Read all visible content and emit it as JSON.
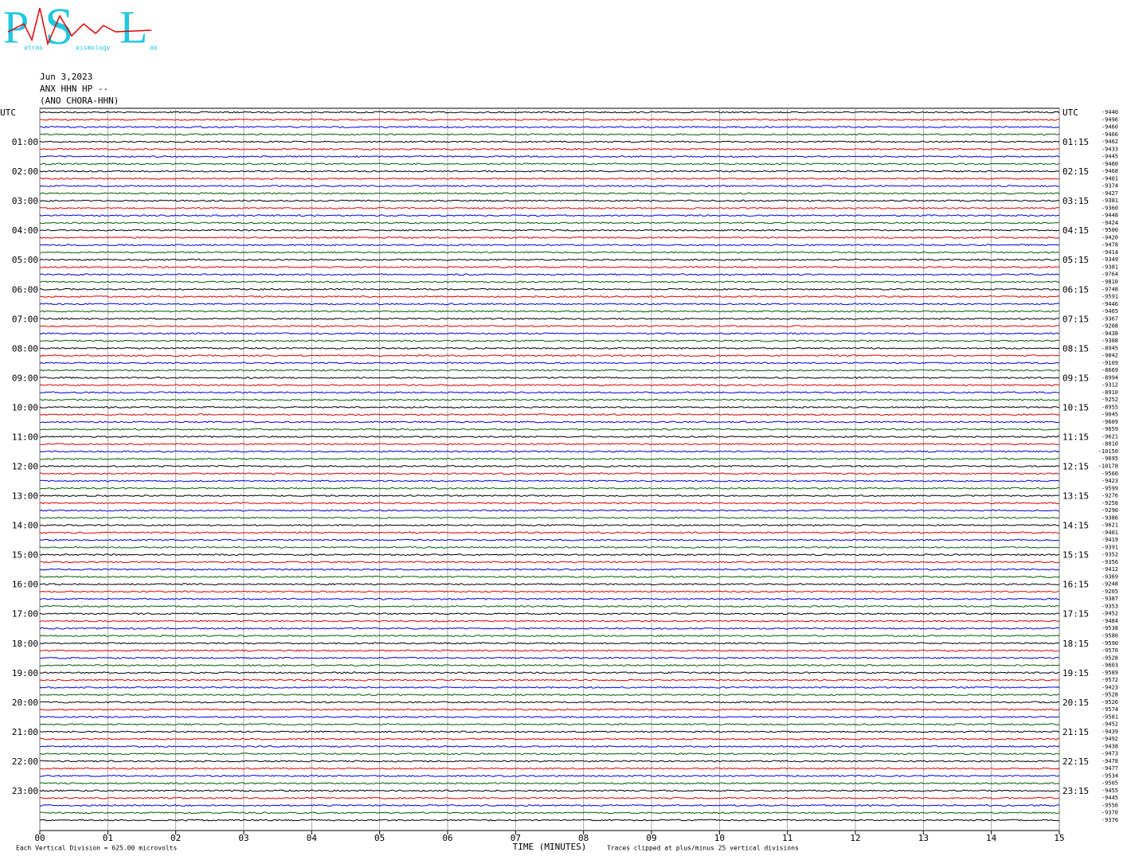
{
  "logo": {
    "letters": [
      "P",
      "S",
      "L"
    ],
    "words": [
      "atras",
      "eismology",
      "ab"
    ]
  },
  "header": [
    "Jun 3,2023",
    "ANX HHN HP --",
    "(ANO CHORA-HHN)"
  ],
  "left_labels": [
    "UTC",
    "01:00",
    "02:00",
    "03:00",
    "04:00",
    "05:00",
    "06:00",
    "07:00",
    "08:00",
    "09:00",
    "10:00",
    "11:00",
    "12:00",
    "13:00",
    "14:00",
    "15:00",
    "16:00",
    "17:00",
    "18:00",
    "19:00",
    "20:00",
    "21:00",
    "22:00",
    "23:00"
  ],
  "right_labels": [
    "UTC",
    "01:15",
    "02:15",
    "03:15",
    "04:15",
    "05:15",
    "06:15",
    "07:15",
    "08:15",
    "09:15",
    "10:15",
    "11:15",
    "12:15",
    "13:15",
    "14:15",
    "15:15",
    "16:15",
    "17:15",
    "18:15",
    "19:15",
    "20:15",
    "21:15",
    "22:15",
    "23:15"
  ],
  "trace_offsets": [
    "-9440",
    "-9496",
    "-9460",
    "-9466",
    "-9462",
    "-9433",
    "-9445",
    "-9460",
    "-9468",
    "-9401",
    "-9374",
    "-9427",
    "-9381",
    "-9360",
    "-9448",
    "-9424",
    "-9500",
    "-9420",
    "-9478",
    "-9414",
    "-9349",
    "-9381",
    "-9764",
    "-9810",
    "-9748",
    "-9591",
    "-9446",
    "-9465",
    "-9367",
    "-9208",
    "-9438",
    "-9308",
    "-8945",
    "-9042",
    "-9109",
    "-8669",
    "-8994",
    "-9312",
    "-8910",
    "-9252",
    "-8955",
    "-9045",
    "-9609",
    "-9659",
    "-9621",
    "-8010",
    "-10150",
    "-9695",
    "-10178",
    "-9566",
    "-9423",
    "-9599",
    "-9276",
    "-9258",
    "-9290",
    "-9386",
    "-9621",
    "-9401",
    "-9419",
    "-9391",
    "-9352",
    "-9356",
    "-9412",
    "-9369",
    "-9248",
    "-9205",
    "-9387",
    "-9353",
    "-9452",
    "-9484",
    "-9538",
    "-9580",
    "-9590",
    "-9570",
    "-9528",
    "-9603",
    "-9589",
    "-9572",
    "-9423",
    "-9528",
    "-9526",
    "-9574",
    "-9581",
    "-9452",
    "-9439",
    "-9492",
    "-9438",
    "-9473",
    "-9478",
    "-9477",
    "-9534",
    "-9505",
    "-9455",
    "-9445",
    "-9556",
    "-9370",
    "-9376"
  ],
  "trace_colors": [
    "#000000",
    "#e00000",
    "#0000e0",
    "#006000"
  ],
  "x_axis": {
    "ticks": [
      "00",
      "01",
      "02",
      "03",
      "04",
      "05",
      "06",
      "07",
      "08",
      "09",
      "10",
      "11",
      "12",
      "13",
      "14",
      "15"
    ],
    "title": "TIME (MINUTES)"
  },
  "footer": {
    "scale": "Each Vertical Division =  625.00 microvolts",
    "clip": "Traces clipped at plus/minus 25 vertical divisions"
  }
}
